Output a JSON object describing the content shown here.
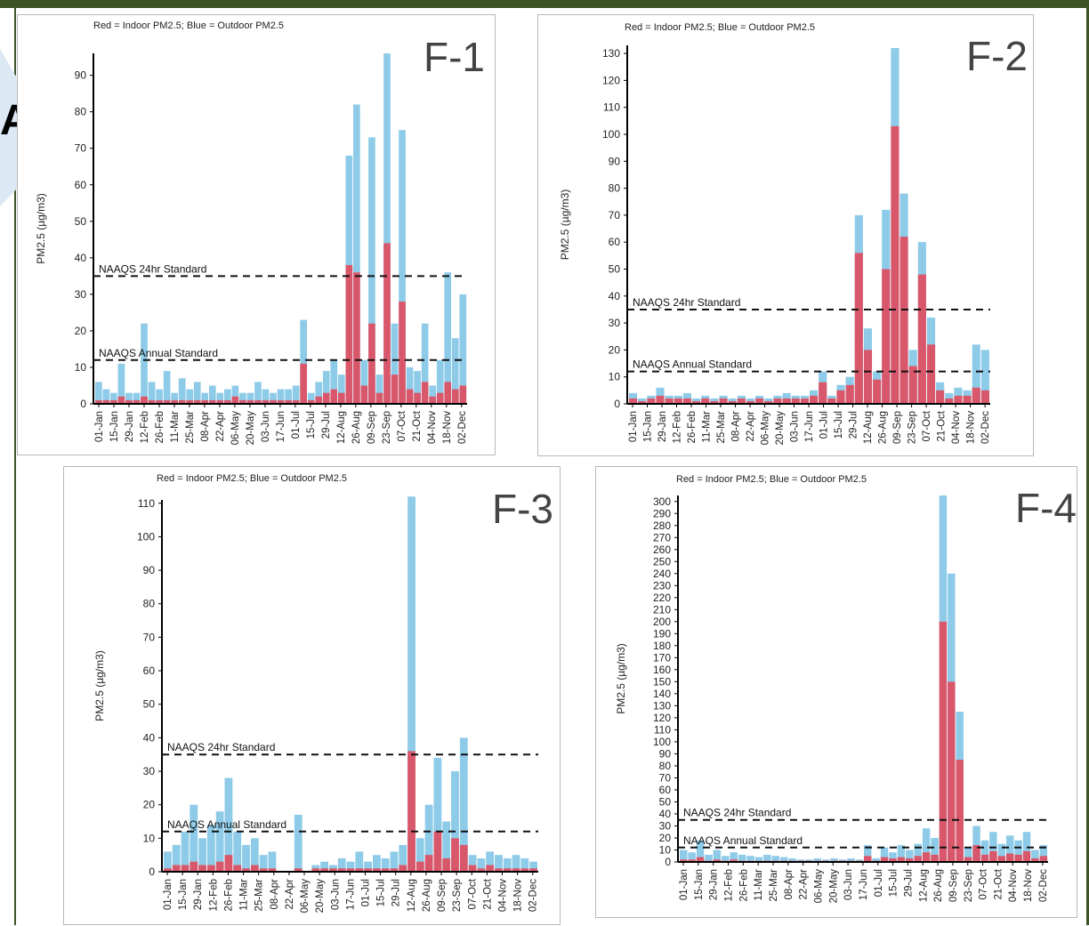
{
  "page": {
    "corner_glyph": "A."
  },
  "colors": {
    "indoor": "#d9576a",
    "outdoor": "#8ecbe8",
    "axis": "#000000",
    "standard_line": "#111111",
    "header_bar": "#3b5326"
  },
  "chart_data": [
    {
      "type": "bar",
      "panel": "F-1",
      "legend": "Red = Indoor PM2.5; Blue = Outdoor PM2.5",
      "ylabel": "PM2.5 (µg/m3)",
      "ylim": [
        0,
        96
      ],
      "yticks": [
        0,
        10,
        20,
        30,
        40,
        50,
        60,
        70,
        80,
        90
      ],
      "xticks": [
        "01-Jan",
        "15-Jan",
        "29-Jan",
        "12-Feb",
        "26-Feb",
        "11-Mar",
        "25-Mar",
        "08-Apr",
        "22-Apr",
        "06-May",
        "20-May",
        "03-Jun",
        "17-Jun",
        "01-Jul",
        "15-Jul",
        "29-Jul",
        "12-Aug",
        "26-Aug",
        "09-Sep",
        "23-Sep",
        "07-Oct",
        "21-Oct",
        "04-Nov",
        "18-Nov",
        "02-Dec"
      ],
      "standards": [
        {
          "name": "NAAQS 24hr Standard",
          "value": 35
        },
        {
          "name": "NAAQS Annual Standard",
          "value": 12
        }
      ],
      "series": [
        {
          "name": "Outdoor PM2.5",
          "values": [
            6,
            4,
            3,
            11,
            3,
            3,
            22,
            6,
            4,
            9,
            3,
            7,
            4,
            6,
            3,
            5,
            3,
            4,
            5,
            3,
            3,
            6,
            4,
            3,
            4,
            4,
            5,
            23,
            3,
            6,
            9,
            12,
            8,
            68,
            82,
            12,
            73,
            8,
            96,
            22,
            75,
            10,
            9,
            22,
            5,
            12,
            36,
            18,
            30
          ]
        },
        {
          "name": "Indoor PM2.5",
          "values": [
            1,
            1,
            1,
            2,
            1,
            1,
            2,
            1,
            1,
            1,
            1,
            1,
            1,
            1,
            1,
            1,
            1,
            1,
            2,
            1,
            1,
            1,
            1,
            1,
            1,
            1,
            1,
            11,
            1,
            2,
            3,
            4,
            3,
            38,
            36,
            5,
            22,
            3,
            44,
            8,
            28,
            4,
            3,
            6,
            2,
            3,
            6,
            4,
            5
          ]
        }
      ]
    },
    {
      "type": "bar",
      "panel": "F-2",
      "legend": "Red = Indoor PM2.5; Blue = Outdoor PM2.5",
      "ylabel": "PM2.5 (µg/m3)",
      "ylim": [
        0,
        133
      ],
      "yticks": [
        0,
        10,
        20,
        30,
        40,
        50,
        60,
        70,
        80,
        90,
        100,
        110,
        120,
        130
      ],
      "xticks": [
        "01-Jan",
        "15-Jan",
        "29-Jan",
        "12-Feb",
        "26-Feb",
        "11-Mar",
        "25-Mar",
        "08-Apr",
        "22-Apr",
        "06-May",
        "20-May",
        "03-Jun",
        "17-Jun",
        "01-Jul",
        "15-Jul",
        "29-Jul",
        "12-Aug",
        "26-Aug",
        "09-Sep",
        "23-Sep",
        "07-Oct",
        "21-Oct",
        "04-Nov",
        "18-Nov",
        "02-Dec"
      ],
      "standards": [
        {
          "name": "NAAQS 24hr Standard",
          "value": 35
        },
        {
          "name": "NAAQS Annual Standard",
          "value": 12
        }
      ],
      "series": [
        {
          "name": "Outdoor PM2.5",
          "values": [
            4,
            2,
            3,
            6,
            3,
            3,
            4,
            2,
            3,
            2,
            3,
            2,
            3,
            2,
            3,
            2,
            3,
            4,
            3,
            3,
            5,
            12,
            3,
            7,
            10,
            70,
            28,
            12,
            72,
            132,
            78,
            20,
            60,
            32,
            8,
            4,
            6,
            5,
            22,
            20
          ]
        },
        {
          "name": "Indoor PM2.5",
          "values": [
            2,
            1,
            2,
            3,
            2,
            2,
            2,
            1,
            2,
            1,
            2,
            1,
            2,
            1,
            2,
            1,
            2,
            2,
            2,
            2,
            3,
            8,
            2,
            5,
            7,
            56,
            20,
            9,
            50,
            103,
            62,
            14,
            48,
            22,
            5,
            2,
            3,
            3,
            6,
            5
          ]
        }
      ]
    },
    {
      "type": "bar",
      "panel": "F-3",
      "legend": "Red = Indoor PM2.5; Blue = Outdoor PM2.5",
      "ylabel": "PM2.5 (µg/m3)",
      "ylim": [
        0,
        111
      ],
      "yticks": [
        0,
        10,
        20,
        30,
        40,
        50,
        60,
        70,
        80,
        90,
        100,
        110
      ],
      "xticks": [
        "01-Jan",
        "15-Jan",
        "29-Jan",
        "12-Feb",
        "26-Feb",
        "11-Mar",
        "25-Mar",
        "08-Apr",
        "22-Apr",
        "06-May",
        "20-May",
        "03-Jun",
        "17-Jun",
        "01-Jul",
        "15-Jul",
        "29-Jul",
        "12-Aug",
        "26-Aug",
        "09-Sep",
        "23-Sep",
        "07-Oct",
        "21-Oct",
        "04-Nov",
        "18-Nov",
        "02-Dec"
      ],
      "standards": [
        {
          "name": "NAAQS 24hr Standard",
          "value": 35
        },
        {
          "name": "NAAQS Annual Standard",
          "value": 12
        }
      ],
      "series": [
        {
          "name": "Outdoor PM2.5",
          "values": [
            6,
            8,
            12,
            20,
            10,
            14,
            18,
            28,
            12,
            8,
            10,
            5,
            6,
            0,
            0,
            17,
            0,
            2,
            3,
            2,
            4,
            3,
            6,
            3,
            5,
            4,
            6,
            8,
            112,
            10,
            20,
            34,
            15,
            30,
            40,
            5,
            4,
            6,
            5,
            4,
            5,
            4,
            3
          ]
        },
        {
          "name": "Indoor PM2.5",
          "values": [
            1,
            2,
            2,
            3,
            2,
            2,
            3,
            5,
            2,
            1,
            2,
            1,
            1,
            0,
            0,
            1,
            0,
            1,
            1,
            1,
            1,
            1,
            1,
            1,
            1,
            1,
            1,
            2,
            36,
            3,
            5,
            12,
            4,
            10,
            8,
            2,
            1,
            2,
            1,
            1,
            1,
            1,
            1
          ]
        }
      ]
    },
    {
      "type": "bar",
      "panel": "F-4",
      "legend": "Red = Indoor PM2.5; Blue = Outdoor PM2.5",
      "ylabel": "PM2.5 (µg/m3)",
      "ylim": [
        0,
        305
      ],
      "yticks": [
        0,
        10,
        20,
        30,
        40,
        50,
        60,
        70,
        80,
        90,
        100,
        110,
        120,
        130,
        140,
        150,
        160,
        170,
        180,
        190,
        200,
        210,
        220,
        230,
        240,
        250,
        260,
        270,
        280,
        290,
        300
      ],
      "xticks": [
        "01-Jan",
        "15-Jan",
        "29-Jan",
        "12-Feb",
        "26-Feb",
        "11-Mar",
        "25-Mar",
        "08-Apr",
        "22-Apr",
        "06-May",
        "20-May",
        "03-Jun",
        "17-Jun",
        "01-Jul",
        "15-Jul",
        "29-Jul",
        "12-Aug",
        "26-Aug",
        "09-Sep",
        "23-Sep",
        "07-Oct",
        "21-Oct",
        "04-Nov",
        "18-Nov",
        "02-Dec"
      ],
      "standards": [
        {
          "name": "NAAQS 24hr Standard",
          "value": 35
        },
        {
          "name": "NAAQS Annual Standard",
          "value": 12
        }
      ],
      "series": [
        {
          "name": "Outdoor PM2.5",
          "values": [
            10,
            8,
            18,
            6,
            10,
            5,
            8,
            6,
            5,
            4,
            6,
            5,
            4,
            3,
            2,
            2,
            3,
            2,
            3,
            2,
            3,
            2,
            14,
            3,
            12,
            8,
            14,
            10,
            15,
            28,
            20,
            305,
            240,
            125,
            12,
            30,
            18,
            25,
            15,
            22,
            18,
            25,
            10,
            14
          ]
        },
        {
          "name": "Indoor PM2.5",
          "values": [
            2,
            2,
            4,
            1,
            2,
            1,
            2,
            1,
            1,
            1,
            1,
            1,
            1,
            1,
            1,
            1,
            1,
            1,
            1,
            1,
            1,
            1,
            5,
            1,
            4,
            3,
            4,
            3,
            5,
            8,
            6,
            200,
            150,
            85,
            4,
            14,
            6,
            9,
            5,
            7,
            6,
            9,
            3,
            5
          ]
        }
      ]
    }
  ]
}
